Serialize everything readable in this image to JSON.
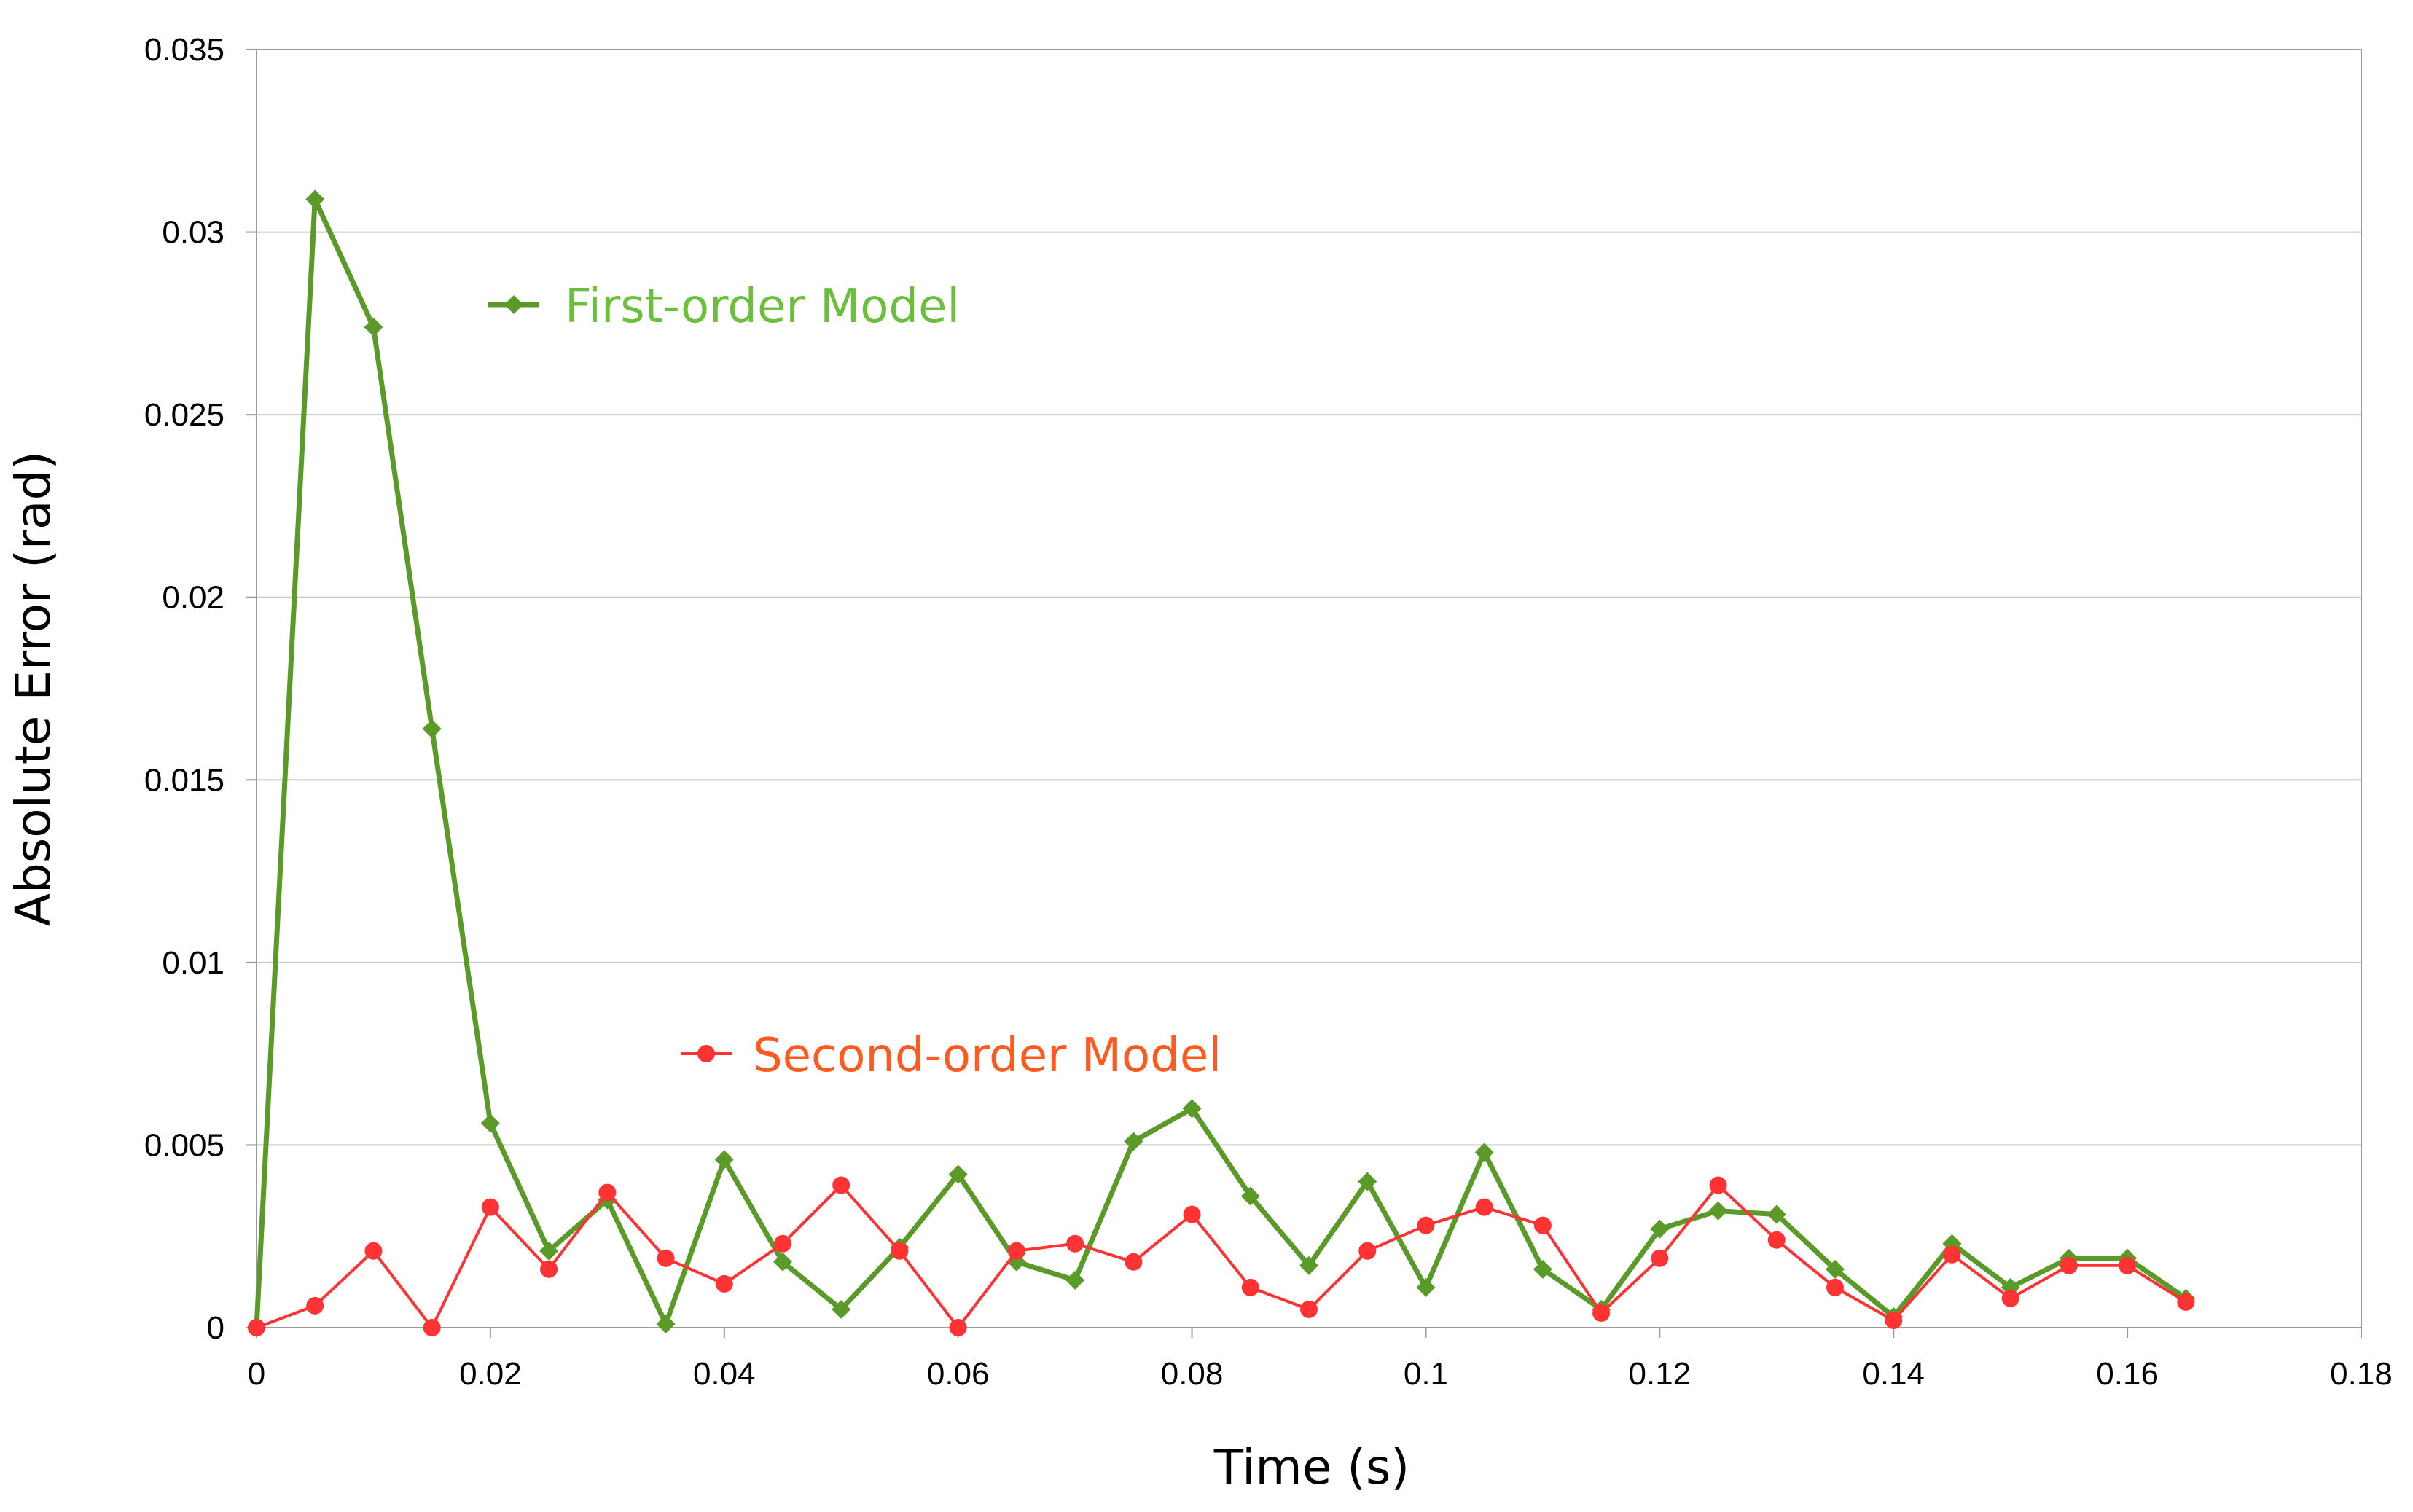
{
  "chart_data": {
    "type": "line",
    "title": "",
    "xlabel": "Time (s)",
    "ylabel": "Absolute Error (rad)",
    "xlim": [
      0,
      0.18
    ],
    "ylim": [
      0,
      0.035
    ],
    "x_ticks": [
      "0",
      "0.02",
      "0.04",
      "0.06",
      "0.08",
      "0.1",
      "0.12",
      "0.14",
      "0.16",
      "0.18"
    ],
    "y_ticks": [
      "0",
      "0.005",
      "0.01",
      "0.015",
      "0.02",
      "0.025",
      "0.03",
      "0.035"
    ],
    "grid": "horizontal",
    "legend": "inline-annotations",
    "x": [
      0,
      0.005,
      0.01,
      0.015,
      0.02,
      0.025,
      0.03,
      0.035,
      0.04,
      0.045,
      0.05,
      0.055,
      0.06,
      0.065,
      0.07,
      0.075,
      0.08,
      0.085,
      0.09,
      0.095,
      0.1,
      0.105,
      0.11,
      0.115,
      0.12,
      0.125,
      0.13,
      0.135,
      0.14,
      0.145,
      0.15,
      0.155,
      0.16,
      0.165
    ],
    "series": [
      {
        "name": "First-order Model",
        "color": "#5a9a28",
        "label_color": "#6cbf3c",
        "marker": "diamond",
        "values": [
          0,
          0.0309,
          0.0274,
          0.0164,
          0.0056,
          0.0021,
          0.0035,
          0.0001,
          0.0046,
          0.0018,
          0.0005,
          0.0022,
          0.0042,
          0.0018,
          0.0013,
          0.0051,
          0.006,
          0.0036,
          0.0017,
          0.004,
          0.0011,
          0.0048,
          0.0016,
          0.0005,
          0.0027,
          0.0032,
          0.0031,
          0.0016,
          0.0003,
          0.0023,
          0.0011,
          0.0019,
          0.0019,
          0.0008
        ]
      },
      {
        "name": "Second-order Model",
        "color": "#ff3333",
        "label_color": "#ff5a1f",
        "marker": "circle",
        "values": [
          0,
          0.0006,
          0.0021,
          0,
          0.0033,
          0.0016,
          0.0037,
          0.0019,
          0.0012,
          0.0023,
          0.0039,
          0.0021,
          0,
          0.0021,
          0.0023,
          0.0018,
          0.0031,
          0.0011,
          0.0005,
          0.0021,
          0.0028,
          0.0033,
          0.0028,
          0.0004,
          0.0019,
          0.0039,
          0.0024,
          0.0011,
          0.0002,
          0.002,
          0.0008,
          0.0017,
          0.0017,
          0.0007
        ]
      }
    ]
  }
}
